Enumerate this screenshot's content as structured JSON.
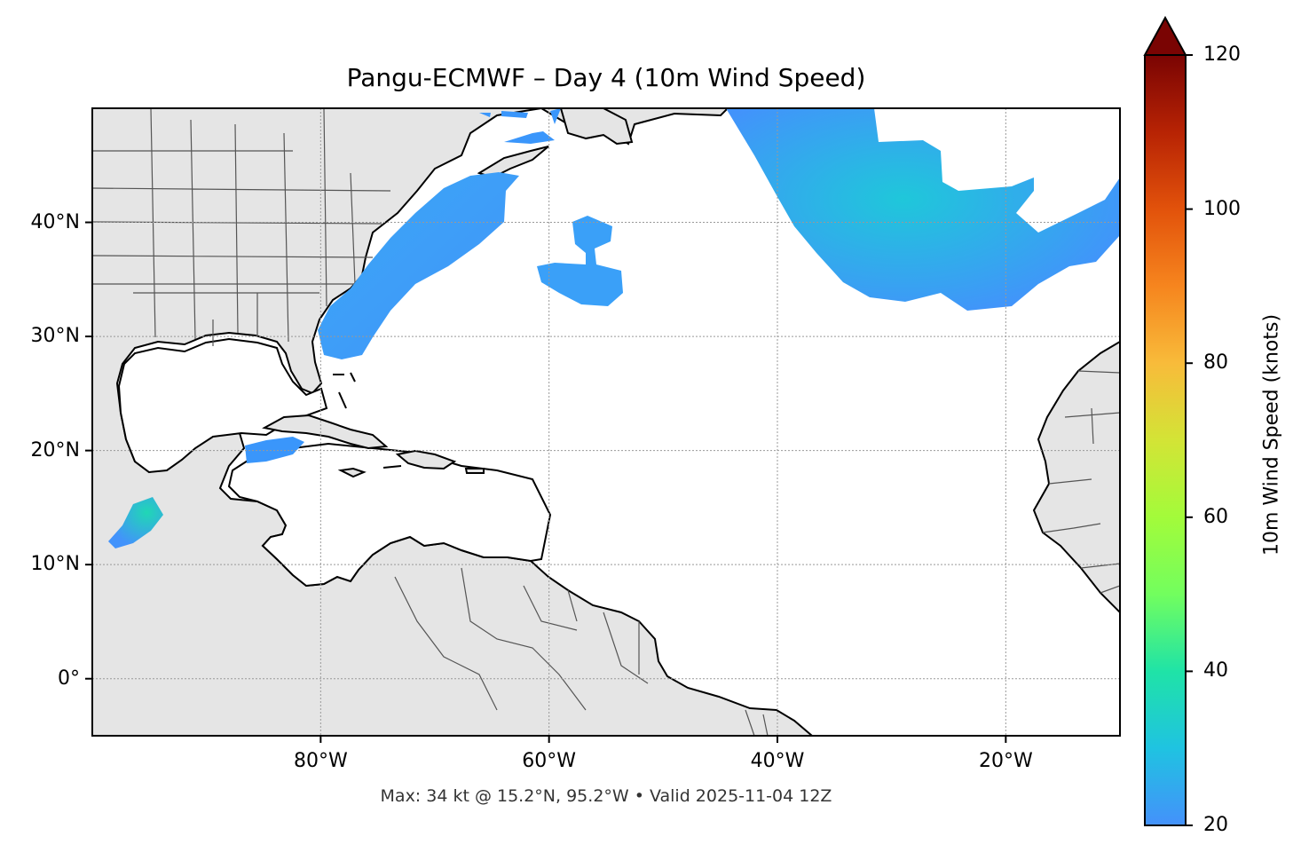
{
  "title": "Pangu-ECMWF – Day 4 (10m Wind Speed)",
  "footnote": "Max: 34 kt @ 15.2°N, 95.2°W • Valid 2025-11-04 12Z",
  "map": {
    "lon_range": [
      -100,
      -10
    ],
    "lat_range": [
      -5,
      50
    ],
    "lat_ticks": [
      {
        "value": 40,
        "label": "40°N"
      },
      {
        "value": 30,
        "label": "30°N"
      },
      {
        "value": 20,
        "label": "20°N"
      },
      {
        "value": 10,
        "label": "10°N"
      },
      {
        "value": 0,
        "label": "0°"
      }
    ],
    "lon_ticks": [
      {
        "value": -80,
        "label": "80°W"
      },
      {
        "value": -60,
        "label": "60°W"
      },
      {
        "value": -40,
        "label": "40°W"
      },
      {
        "value": -20,
        "label": "20°W"
      }
    ],
    "land_color": "#e5e5e5",
    "ocean_color": "#ffffff",
    "gridlines": true
  },
  "colorbar": {
    "label": "10m Wind Speed (knots)",
    "range": [
      20,
      120
    ],
    "extend": "max",
    "colormap": "turbo",
    "ticks": [
      {
        "value": 120,
        "label": "120"
      },
      {
        "value": 100,
        "label": "100"
      },
      {
        "value": 80,
        "label": "80"
      },
      {
        "value": 60,
        "label": "60"
      },
      {
        "value": 40,
        "label": "40"
      },
      {
        "value": 20,
        "label": "20"
      }
    ],
    "over_color": "#7a0403"
  },
  "wind_fields": [
    {
      "name": "us-east-coast-band",
      "speed_kt": 22
    },
    {
      "name": "north-atlantic-ridge",
      "speed_kt": 24
    },
    {
      "name": "central-atlantic-hook",
      "speed_kt": 22
    },
    {
      "name": "caribbean-patch",
      "speed_kt": 21
    },
    {
      "name": "gulf-of-tehuantepec-jet",
      "speed_kt": 34
    },
    {
      "name": "newfoundland-strips",
      "speed_kt": 21
    }
  ]
}
